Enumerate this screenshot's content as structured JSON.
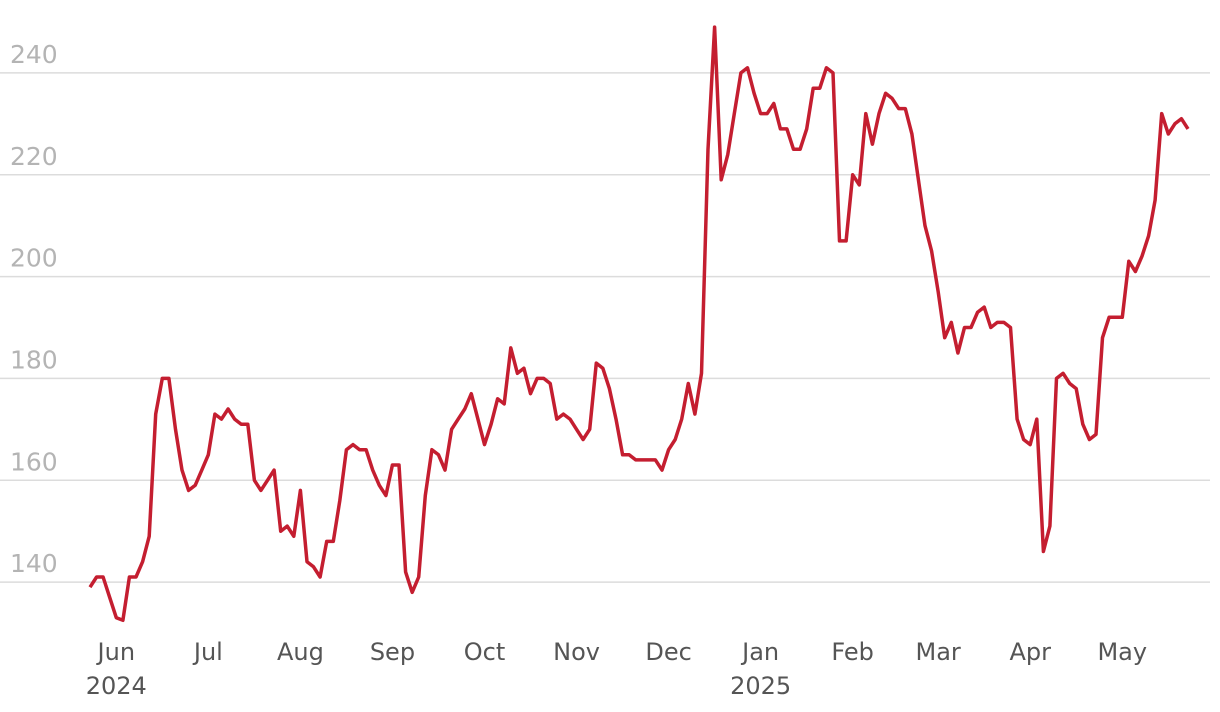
{
  "chart_data": {
    "type": "line",
    "color": "#c41e30",
    "grid": true,
    "ylim": [
      130,
      250
    ],
    "yticks": [
      140,
      160,
      180,
      200,
      220,
      240
    ],
    "categories": [
      null,
      null,
      null,
      null,
      "Jun 2024",
      null,
      null,
      null,
      null,
      null,
      null,
      null,
      null,
      null,
      null,
      null,
      null,
      null,
      "Jul",
      null,
      null,
      null,
      null,
      null,
      null,
      null,
      null,
      null,
      null,
      null,
      null,
      null,
      "Aug",
      null,
      null,
      null,
      null,
      null,
      null,
      null,
      null,
      null,
      null,
      null,
      null,
      null,
      "Sep",
      null,
      null,
      null,
      null,
      null,
      null,
      null,
      null,
      null,
      null,
      null,
      null,
      null,
      "Oct",
      null,
      null,
      null,
      null,
      null,
      null,
      null,
      null,
      null,
      null,
      null,
      null,
      null,
      "Nov",
      null,
      null,
      null,
      null,
      null,
      null,
      null,
      null,
      null,
      null,
      null,
      null,
      null,
      "Dec",
      null,
      null,
      null,
      null,
      null,
      null,
      null,
      null,
      null,
      null,
      null,
      null,
      null,
      "Jan 2025",
      null,
      null,
      null,
      null,
      null,
      null,
      null,
      null,
      null,
      null,
      null,
      null,
      null,
      "Feb",
      null,
      null,
      null,
      null,
      null,
      null,
      null,
      null,
      null,
      null,
      null,
      null,
      "Mar",
      null,
      null,
      null,
      null,
      null,
      null,
      null,
      null,
      null,
      null,
      null,
      null,
      null,
      "Apr",
      null,
      null,
      null,
      null,
      null,
      null,
      null,
      null,
      null,
      null,
      null,
      null,
      null,
      "May",
      null,
      null,
      null,
      null,
      null,
      null,
      null,
      null,
      null,
      null
    ],
    "values": [
      139,
      141,
      141,
      137,
      133,
      132.5,
      141,
      141,
      144,
      149,
      173,
      180,
      180,
      170,
      162,
      158,
      159,
      162,
      165,
      173,
      172,
      174,
      172,
      171,
      171,
      160,
      158,
      160,
      162,
      150,
      151,
      149,
      158,
      144,
      143,
      141,
      148,
      148,
      156,
      166,
      167,
      166,
      166,
      162,
      159,
      157,
      163,
      163,
      142,
      138,
      141,
      157,
      166,
      165,
      162,
      170,
      172,
      174,
      177,
      172,
      167,
      171,
      176,
      175,
      186,
      181,
      182,
      177,
      180,
      180,
      179,
      172,
      173,
      172,
      170,
      168,
      170,
      183,
      182,
      178,
      172,
      165,
      165,
      164,
      164,
      164,
      164,
      162,
      166,
      168,
      172,
      179,
      173,
      181,
      225,
      249,
      219,
      224,
      232,
      240,
      241,
      236,
      232,
      232,
      234,
      229,
      229,
      225,
      225,
      229,
      237,
      237,
      241,
      240,
      207,
      207,
      220,
      218,
      232,
      226,
      232,
      236,
      235,
      233,
      233,
      228,
      219,
      210,
      205,
      197,
      188,
      191,
      185,
      190,
      190,
      193,
      194,
      190,
      191,
      191,
      190,
      172,
      168,
      167,
      172,
      146,
      151,
      180,
      181,
      179,
      178,
      171,
      168,
      169,
      188,
      192,
      192,
      192,
      203,
      201,
      204,
      208,
      215,
      232,
      228,
      230,
      231,
      229
    ]
  }
}
